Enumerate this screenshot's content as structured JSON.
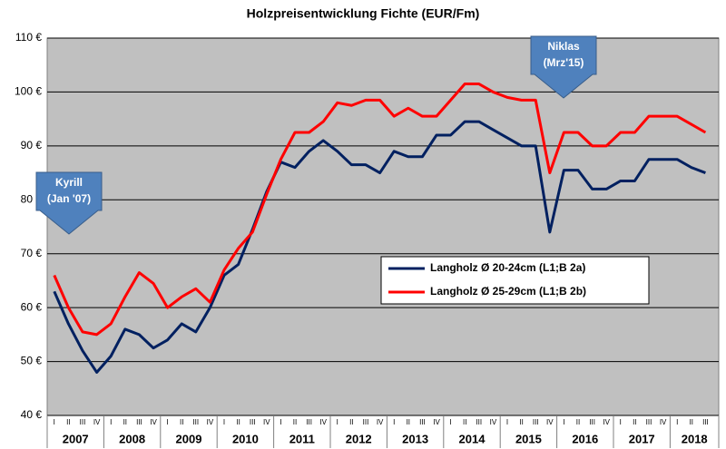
{
  "chart_data": {
    "type": "line",
    "title": "Holzpreisentwicklung  Fichte (EUR/Fm)",
    "categories": [
      "I",
      "II",
      "III",
      "IV",
      "I",
      "II",
      "III",
      "IV",
      "I",
      "II",
      "III",
      "IV",
      "I",
      "II",
      "III",
      "IV",
      "I",
      "II",
      "III",
      "IV",
      "I",
      "II",
      "III",
      "IV",
      "I",
      "II",
      "III",
      "IV",
      "I",
      "II",
      "III",
      "IV",
      "I",
      "II",
      "III",
      "IV",
      "I",
      "II",
      "III",
      "IV",
      "I",
      "II",
      "III",
      "IV",
      "I",
      "II",
      "III"
    ],
    "years": [
      "2007",
      "2008",
      "2009",
      "2010",
      "2011",
      "2012",
      "2013",
      "2014",
      "2015",
      "2016",
      "2017",
      "2018"
    ],
    "series": [
      {
        "name": "Langholz Ø 20-24cm (L1;B 2a)",
        "color": "#002060",
        "values": [
          63,
          57,
          52,
          48,
          51,
          56,
          55,
          52.5,
          54,
          57,
          55.5,
          60,
          66,
          68,
          74.5,
          81.5,
          87,
          86,
          89,
          91,
          89,
          86.5,
          86.5,
          85,
          89,
          88,
          88,
          92,
          92,
          94.5,
          94.5,
          93,
          91.5,
          90,
          90,
          74,
          85.5,
          85.5,
          82,
          82,
          83.5,
          83.5,
          87.5,
          87.5,
          87.5,
          86,
          85
        ]
      },
      {
        "name": "Langholz Ø 25-29cm (L1;B 2b)",
        "color": "#ff0000",
        "values": [
          66,
          60,
          55.5,
          55,
          57,
          62,
          66.5,
          64.5,
          60,
          62,
          63.5,
          61,
          67,
          71,
          74,
          81,
          87.5,
          92.5,
          92.5,
          94.5,
          98,
          97.5,
          98.5,
          98.5,
          95.5,
          97,
          95.5,
          95.5,
          98.5,
          101.5,
          101.5,
          100,
          99,
          98.5,
          98.5,
          85,
          92.5,
          92.5,
          90,
          90,
          92.5,
          92.5,
          95.5,
          95.5,
          95.5,
          94,
          92.5
        ]
      }
    ],
    "ylim": [
      40,
      110
    ],
    "yticks": [
      {
        "value": 40,
        "label": "40 €"
      },
      {
        "value": 50,
        "label": "50 €"
      },
      {
        "value": 60,
        "label": "60 €"
      },
      {
        "value": 70,
        "label": "70 €"
      },
      {
        "value": 80,
        "label": "80 €"
      },
      {
        "value": 90,
        "label": "90 €"
      },
      {
        "value": 100,
        "label": "100 €"
      },
      {
        "value": 110,
        "label": "110 €"
      }
    ],
    "grid": true,
    "annotations": [
      {
        "line1": "Kyrill",
        "line2": "(Jan '07)",
        "category_index": 0
      },
      {
        "line1": "Niklas",
        "line2": "(Mrz'15)",
        "category_index": 33
      }
    ]
  }
}
